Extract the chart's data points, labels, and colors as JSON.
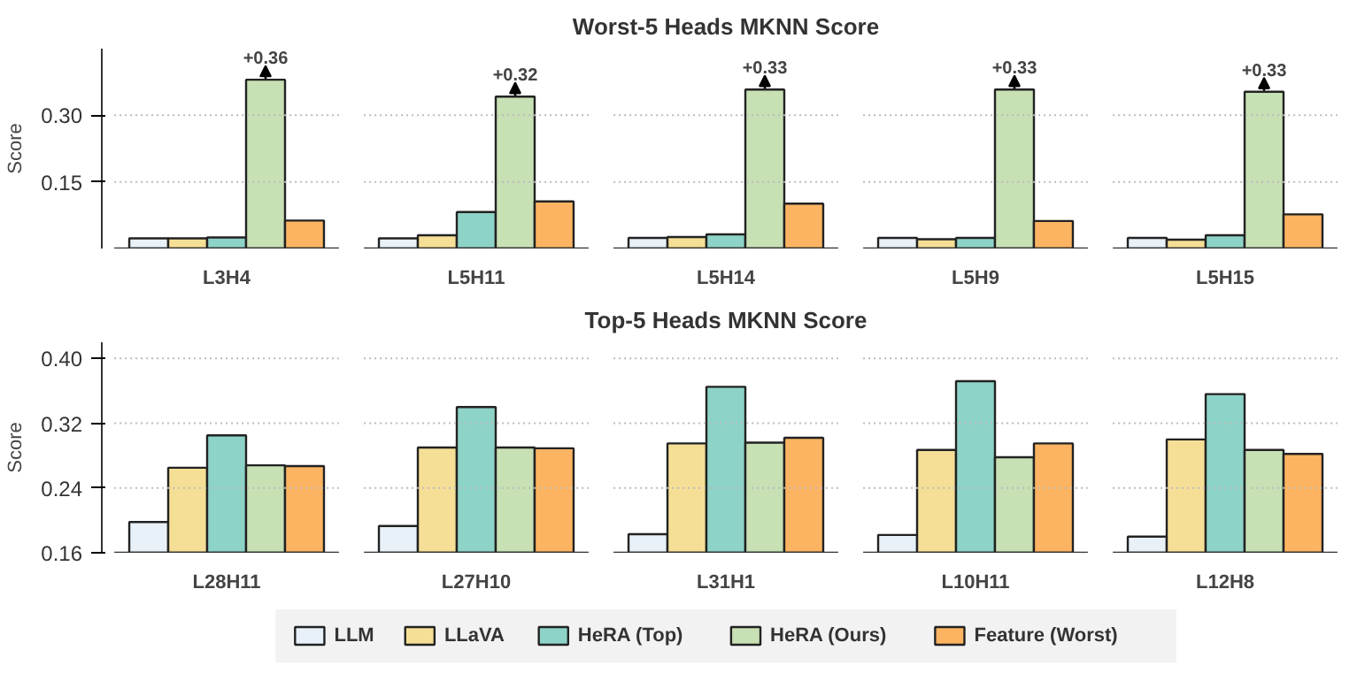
{
  "chart_data": [
    {
      "type": "bar",
      "title": "Worst-5 Heads MKNN Score",
      "ylabel": "Score",
      "categories": [
        "L3H4",
        "L5H11",
        "L5H14",
        "L5H9",
        "L5H15"
      ],
      "ylim": [
        0,
        0.45
      ],
      "yticks": [
        {
          "value": 0.15,
          "label": "0.15"
        },
        {
          "value": 0.3,
          "label": "0.30"
        }
      ],
      "grid": "y",
      "annotations": [
        "+0.36",
        "+0.32",
        "+0.33",
        "+0.33",
        "+0.33"
      ],
      "series": [
        {
          "color": "#e8f0f8",
          "values": [
            0.023,
            0.023,
            0.024,
            0.024,
            0.024
          ]
        },
        {
          "color": "#f5df96",
          "values": [
            0.023,
            0.03,
            0.026,
            0.021,
            0.02
          ]
        },
        {
          "color": "#8dd3c7",
          "values": [
            0.025,
            0.082,
            0.032,
            0.024,
            0.03
          ]
        },
        {
          "color": "#c7e0b4",
          "values": [
            0.38,
            0.342,
            0.358,
            0.358,
            0.353
          ]
        },
        {
          "color": "#fdb462",
          "values": [
            0.063,
            0.106,
            0.101,
            0.062,
            0.077
          ]
        }
      ]
    },
    {
      "type": "bar",
      "title": "Top-5 Heads MKNN Score",
      "ylabel": "Score",
      "categories": [
        "L28H11",
        "L27H10",
        "L31H1",
        "L10H11",
        "L12H8"
      ],
      "ylim": [
        0.16,
        0.42
      ],
      "yticks": [
        {
          "value": 0.16,
          "label": "0.16"
        },
        {
          "value": 0.24,
          "label": "0.24"
        },
        {
          "value": 0.32,
          "label": "0.32"
        },
        {
          "value": 0.4,
          "label": "0.40"
        }
      ],
      "grid": "y",
      "legend": "bottom",
      "series": [
        {
          "name": "LLM",
          "color": "#e8f0f8",
          "values": [
            0.198,
            0.193,
            0.183,
            0.182,
            0.18
          ]
        },
        {
          "name": "LLaVA",
          "color": "#f5df96",
          "values": [
            0.265,
            0.29,
            0.295,
            0.287,
            0.3
          ]
        },
        {
          "name": "HeRA (Top)",
          "color": "#8dd3c7",
          "values": [
            0.305,
            0.34,
            0.365,
            0.372,
            0.356
          ]
        },
        {
          "name": "HeRA (Ours)",
          "color": "#c7e0b4",
          "values": [
            0.268,
            0.29,
            0.296,
            0.278,
            0.287
          ]
        },
        {
          "name": "Feature (Worst)",
          "color": "#fdb462",
          "values": [
            0.267,
            0.289,
            0.302,
            0.295,
            0.282
          ]
        }
      ]
    }
  ]
}
